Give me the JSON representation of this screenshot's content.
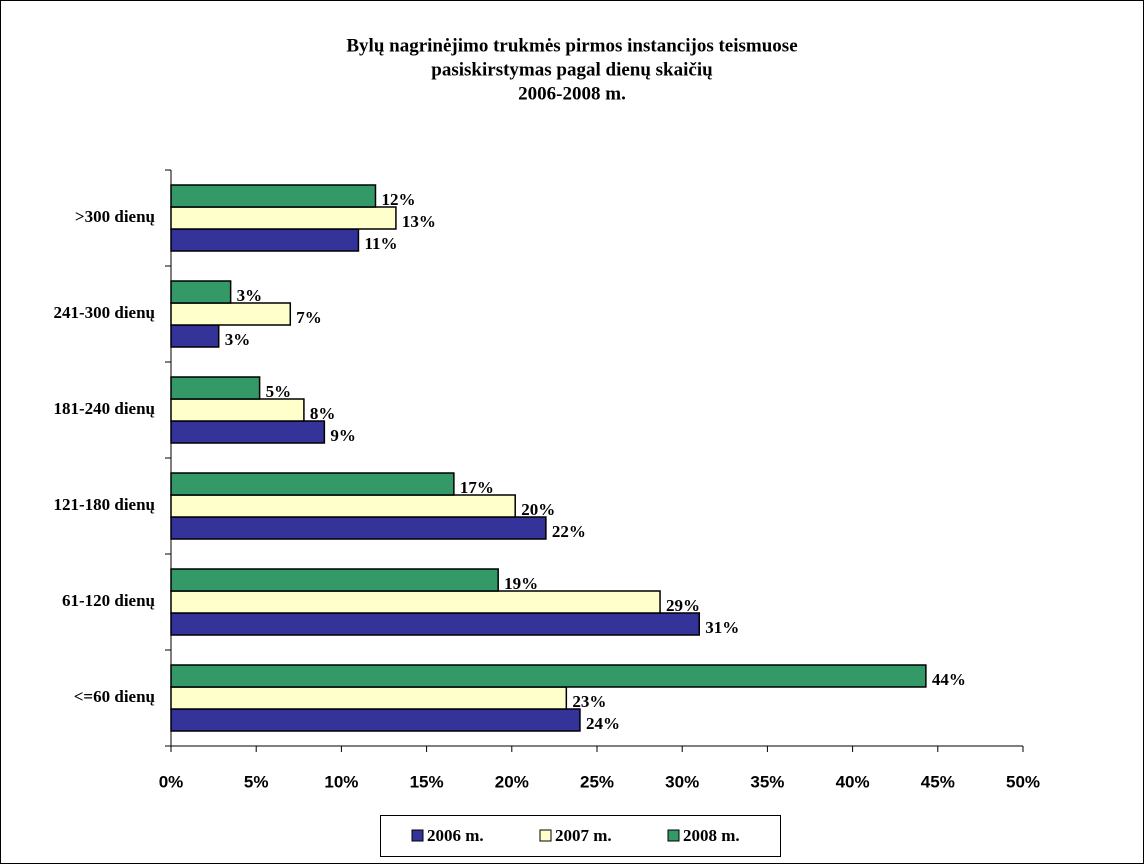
{
  "chart_data": {
    "type": "hbar",
    "title": [
      "Bylų nagrinėjimo trukmės pirmos instancijos teismuose",
      "pasiskirstymas pagal dienų skaičių",
      "2006-2008 m."
    ],
    "categories": [
      "<=60 dienų",
      "61-120 dienų",
      "121-180 dienų",
      "181-240 dienų",
      "241-300 dienų",
      ">300 dienų"
    ],
    "series": [
      {
        "name": "2006 m.",
        "color": "#333399",
        "values": [
          24.0,
          31.0,
          22.0,
          9.0,
          2.8,
          11.0
        ],
        "value_labels": [
          "24%",
          "31%",
          "22%",
          "9%",
          "3%",
          "11%"
        ]
      },
      {
        "name": "2007 m.",
        "color": "#ffffcc",
        "values": [
          23.2,
          28.7,
          20.2,
          7.8,
          7.0,
          13.2
        ],
        "value_labels": [
          "23%",
          "29%",
          "20%",
          "8%",
          "7%",
          "13%"
        ]
      },
      {
        "name": "2008 m.",
        "color": "#339966",
        "values": [
          44.3,
          19.2,
          16.6,
          5.2,
          3.5,
          12.0
        ],
        "value_labels": [
          "44%",
          "19%",
          "17%",
          "5%",
          "3%",
          "12%"
        ]
      }
    ],
    "xlim": [
      0,
      50
    ],
    "xticks": [
      {
        "value": 0,
        "label": "0%"
      },
      {
        "value": 5,
        "label": "5%"
      },
      {
        "value": 10,
        "label": "10%"
      },
      {
        "value": 15,
        "label": "15%"
      },
      {
        "value": 20,
        "label": "20%"
      },
      {
        "value": 25,
        "label": "25%"
      },
      {
        "value": 30,
        "label": "30%"
      },
      {
        "value": 35,
        "label": "35%"
      },
      {
        "value": 40,
        "label": "40%"
      },
      {
        "value": 45,
        "label": "45%"
      },
      {
        "value": 50,
        "label": "50%"
      }
    ],
    "grid": false,
    "legend": "bottom"
  }
}
